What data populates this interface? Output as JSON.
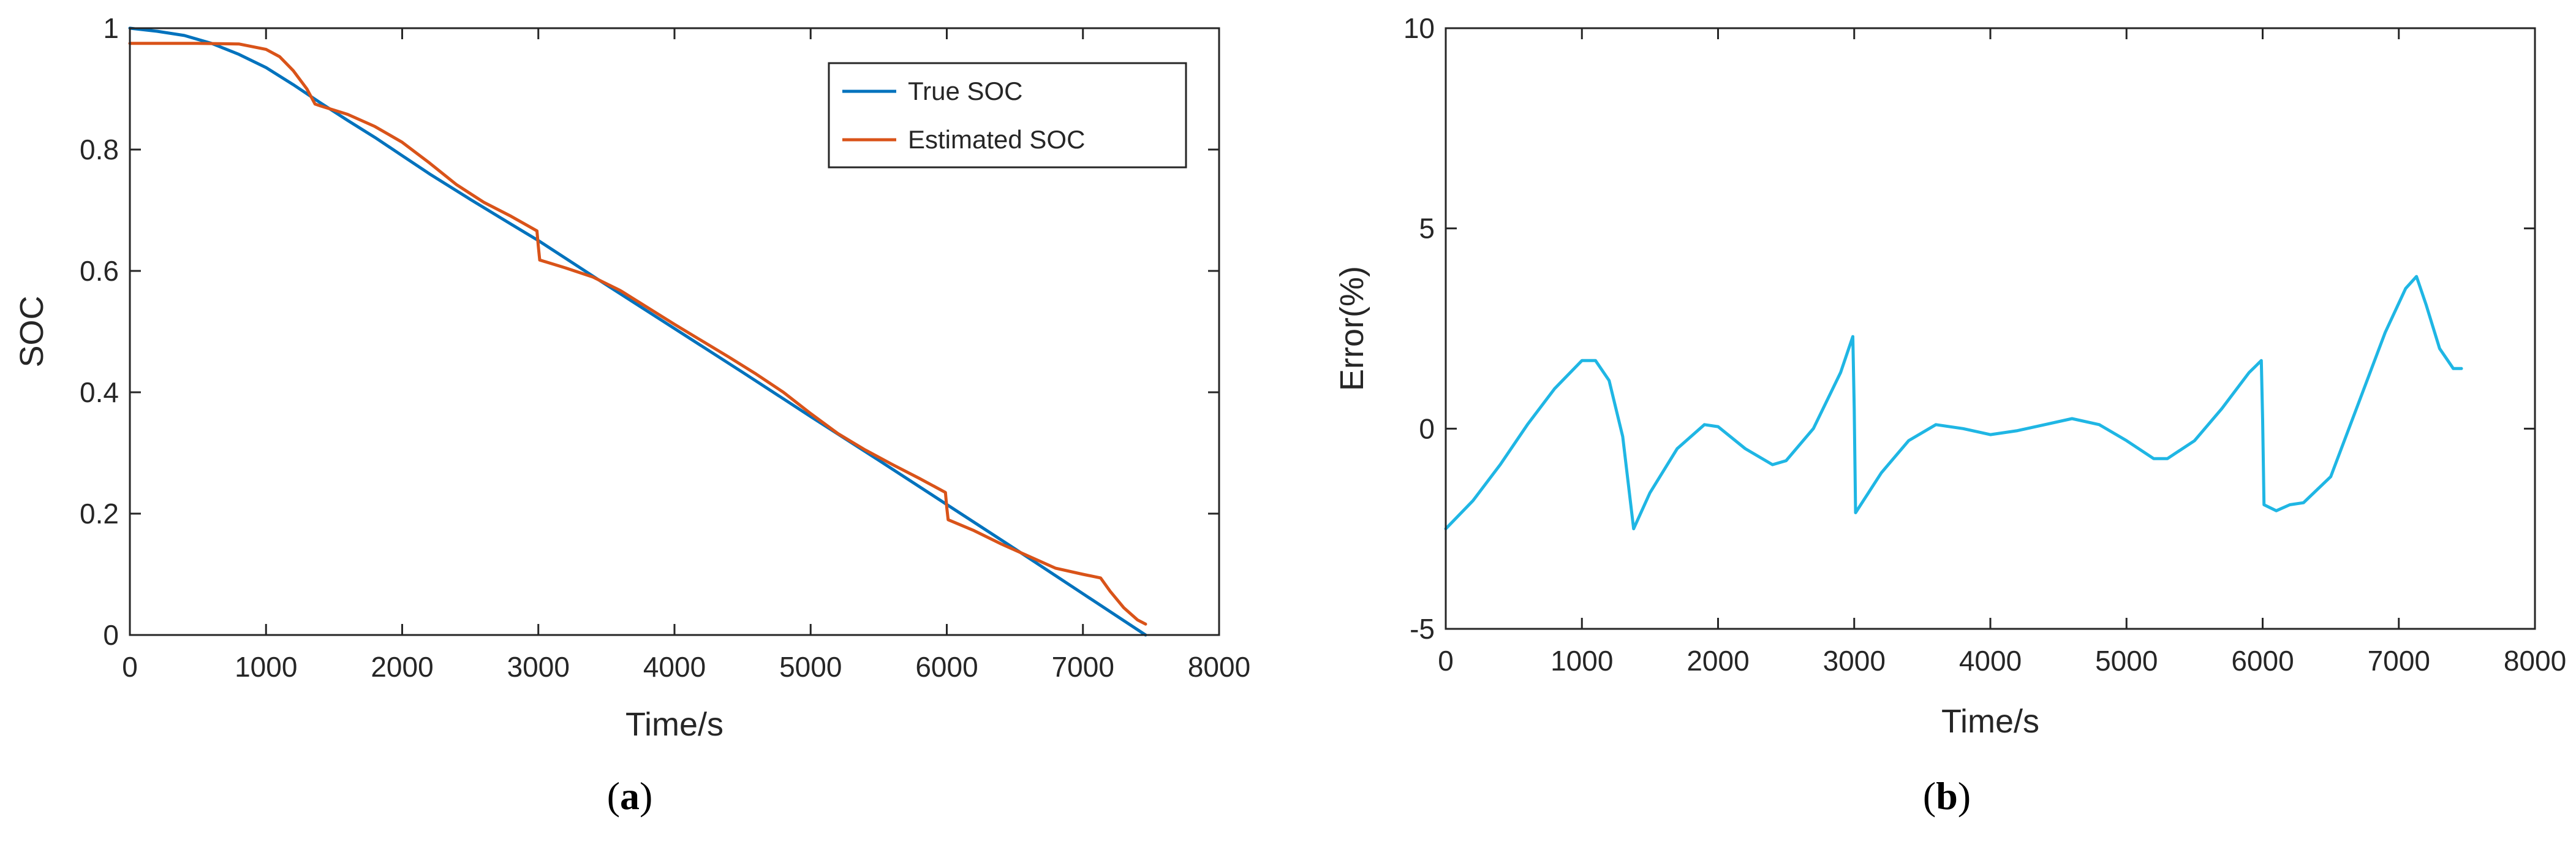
{
  "chart_data": [
    {
      "type": "line",
      "caption_letter": "a",
      "xlabel": "Time/s",
      "ylabel": "SOC",
      "xlim": [
        0,
        8000
      ],
      "ylim": [
        0,
        1
      ],
      "xticks": [
        0,
        1000,
        2000,
        3000,
        4000,
        5000,
        6000,
        7000,
        8000
      ],
      "yticks": [
        0,
        0.2,
        0.4,
        0.6,
        0.8,
        1
      ],
      "ytick_labels": [
        "0",
        "0.2",
        "0.4",
        "0.6",
        "0.8",
        "1"
      ],
      "grid": false,
      "legend_position": "top-right",
      "series": [
        {
          "name": "True SOC",
          "color": "#0072BD",
          "x": [
            0,
            200,
            400,
            600,
            800,
            1000,
            1200,
            1400,
            1600,
            1800,
            2000,
            2200,
            2500,
            2800,
            3000,
            3500,
            4000,
            4500,
            5000,
            5500,
            6000,
            6500,
            7000,
            7460
          ],
          "y": [
            1.0,
            0.995,
            0.988,
            0.975,
            0.957,
            0.935,
            0.907,
            0.877,
            0.848,
            0.82,
            0.79,
            0.76,
            0.718,
            0.677,
            0.65,
            0.577,
            0.505,
            0.433,
            0.36,
            0.288,
            0.215,
            0.142,
            0.068,
            0.0
          ]
        },
        {
          "name": "Estimated SOC",
          "color": "#D95319",
          "x": [
            0,
            500,
            800,
            1000,
            1100,
            1200,
            1300,
            1360,
            1400,
            1600,
            1800,
            2000,
            2200,
            2400,
            2600,
            2800,
            2990,
            3000,
            3010,
            3200,
            3400,
            3600,
            3800,
            4000,
            4200,
            4400,
            4600,
            4800,
            5000,
            5200,
            5400,
            5600,
            5800,
            5990,
            6000,
            6010,
            6200,
            6400,
            6600,
            6800,
            7000,
            7130,
            7200,
            7300,
            7400,
            7460
          ],
          "y": [
            0.975,
            0.975,
            0.974,
            0.965,
            0.953,
            0.93,
            0.9,
            0.875,
            0.872,
            0.858,
            0.838,
            0.812,
            0.778,
            0.742,
            0.713,
            0.69,
            0.666,
            0.64,
            0.618,
            0.605,
            0.59,
            0.568,
            0.54,
            0.512,
            0.485,
            0.458,
            0.43,
            0.4,
            0.365,
            0.332,
            0.305,
            0.281,
            0.258,
            0.235,
            0.21,
            0.19,
            0.172,
            0.15,
            0.13,
            0.11,
            0.1,
            0.094,
            0.072,
            0.045,
            0.025,
            0.018
          ]
        }
      ]
    },
    {
      "type": "line",
      "caption_letter": "b",
      "xlabel": "Time/s",
      "ylabel": "Error(%)",
      "xlim": [
        0,
        8000
      ],
      "ylim": [
        -5,
        10
      ],
      "xticks": [
        0,
        1000,
        2000,
        3000,
        4000,
        5000,
        6000,
        7000,
        8000
      ],
      "yticks": [
        -5,
        0,
        5,
        10
      ],
      "ytick_labels": [
        "-5",
        "0",
        "5",
        "10"
      ],
      "grid": false,
      "series": [
        {
          "name": "Error",
          "color": "#1FB6E4",
          "x": [
            0,
            200,
            400,
            600,
            800,
            1000,
            1100,
            1200,
            1300,
            1380,
            1500,
            1700,
            1900,
            2000,
            2200,
            2400,
            2500,
            2700,
            2900,
            2990,
            3000,
            3010,
            3200,
            3400,
            3600,
            3800,
            4000,
            4200,
            4400,
            4600,
            4800,
            5000,
            5200,
            5300,
            5500,
            5700,
            5900,
            5990,
            6000,
            6010,
            6100,
            6200,
            6300,
            6500,
            6700,
            6900,
            7050,
            7130,
            7200,
            7300,
            7400,
            7460
          ],
          "y": [
            -2.5,
            -1.8,
            -0.9,
            0.1,
            1.0,
            1.7,
            1.7,
            1.2,
            -0.2,
            -2.5,
            -1.6,
            -0.5,
            0.1,
            0.05,
            -0.5,
            -0.9,
            -0.8,
            0.0,
            1.4,
            2.3,
            0.5,
            -2.1,
            -1.1,
            -0.3,
            0.1,
            0.0,
            -0.15,
            -0.05,
            0.1,
            0.25,
            0.1,
            -0.3,
            -0.75,
            -0.75,
            -0.3,
            0.5,
            1.4,
            1.7,
            0.2,
            -1.9,
            -2.05,
            -1.9,
            -1.85,
            -1.2,
            0.6,
            2.4,
            3.5,
            3.8,
            3.1,
            2.0,
            1.5,
            1.5
          ]
        }
      ]
    }
  ]
}
